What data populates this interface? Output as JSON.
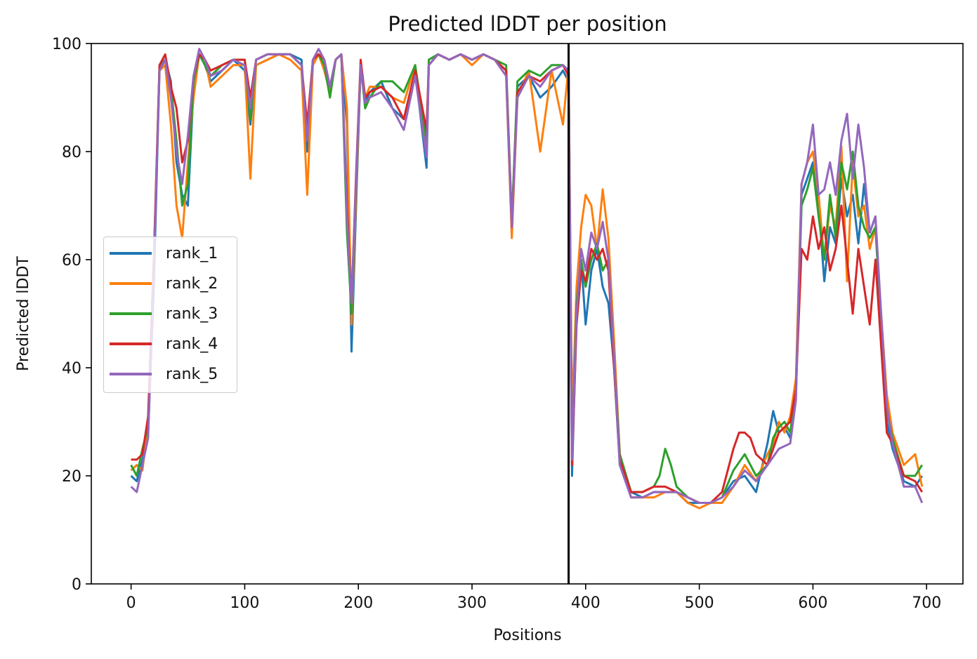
{
  "chart_data": {
    "type": "line",
    "title": "Predicted lDDT per position",
    "xlabel": "Positions",
    "ylabel": "Predicted lDDT",
    "xlim": [
      -35,
      732
    ],
    "ylim": [
      0,
      100
    ],
    "x_ticks": [
      "0",
      "100",
      "200",
      "300",
      "400",
      "500",
      "600",
      "700"
    ],
    "y_ticks": [
      "0",
      "20",
      "40",
      "60",
      "80",
      "100"
    ],
    "vertical_line_x": 385,
    "legend_position": "center-left",
    "grid": false,
    "series": [
      {
        "name": "rank_1",
        "color": "#1f77b4",
        "x": [
          0,
          5,
          10,
          15,
          20,
          25,
          30,
          35,
          40,
          45,
          50,
          55,
          60,
          65,
          70,
          80,
          90,
          100,
          105,
          110,
          120,
          130,
          140,
          150,
          155,
          160,
          165,
          170,
          175,
          180,
          185,
          190,
          194,
          198,
          202,
          206,
          210,
          220,
          230,
          240,
          250,
          260,
          262,
          270,
          280,
          290,
          300,
          310,
          320,
          330,
          335,
          340,
          350,
          360,
          370,
          380,
          385,
          388,
          392,
          396,
          400,
          405,
          410,
          415,
          420,
          425,
          430,
          440,
          450,
          460,
          470,
          480,
          490,
          500,
          510,
          520,
          530,
          540,
          550,
          560,
          565,
          570,
          575,
          580,
          585,
          590,
          595,
          600,
          605,
          610,
          615,
          620,
          625,
          630,
          635,
          640,
          645,
          650,
          655,
          660,
          665,
          670,
          680,
          690,
          696
        ],
        "y": [
          20,
          19,
          23,
          28,
          55,
          95,
          97,
          93,
          78,
          72,
          70,
          92,
          98,
          96,
          93,
          95,
          97,
          95,
          85,
          96,
          97,
          98,
          98,
          97,
          80,
          97,
          98,
          96,
          92,
          97,
          98,
          85,
          43,
          70,
          96,
          89,
          91,
          93,
          88,
          86,
          95,
          77,
          96,
          98,
          97,
          98,
          97,
          98,
          97,
          95,
          67,
          92,
          94,
          90,
          92,
          95,
          93,
          20,
          50,
          60,
          48,
          58,
          62,
          55,
          52,
          40,
          22,
          17,
          16,
          17,
          17,
          17,
          15,
          15,
          15,
          16,
          19,
          20,
          17,
          26,
          32,
          28,
          29,
          27,
          35,
          72,
          75,
          78,
          70,
          56,
          66,
          63,
          75,
          68,
          72,
          63,
          74,
          65,
          68,
          45,
          30,
          25,
          19,
          18,
          20
        ]
      },
      {
        "name": "rank_2",
        "color": "#ff7f0e",
        "x": [
          0,
          5,
          10,
          15,
          20,
          25,
          30,
          35,
          40,
          45,
          50,
          55,
          60,
          65,
          70,
          80,
          90,
          100,
          105,
          110,
          120,
          130,
          140,
          150,
          155,
          160,
          165,
          170,
          175,
          180,
          185,
          190,
          194,
          198,
          202,
          206,
          210,
          220,
          230,
          240,
          250,
          260,
          262,
          270,
          280,
          290,
          300,
          310,
          320,
          330,
          335,
          340,
          350,
          360,
          370,
          380,
          385,
          388,
          392,
          396,
          400,
          405,
          410,
          415,
          420,
          425,
          430,
          440,
          450,
          460,
          470,
          480,
          490,
          500,
          510,
          520,
          530,
          540,
          550,
          560,
          565,
          570,
          575,
          580,
          585,
          590,
          595,
          600,
          605,
          610,
          615,
          620,
          625,
          630,
          635,
          640,
          645,
          650,
          655,
          660,
          665,
          670,
          680,
          690,
          696
        ],
        "y": [
          21,
          22,
          21,
          30,
          60,
          95,
          96,
          85,
          70,
          64,
          78,
          90,
          98,
          97,
          92,
          94,
          96,
          96,
          75,
          96,
          97,
          98,
          97,
          95,
          72,
          96,
          98,
          95,
          91,
          97,
          98,
          88,
          48,
          72,
          96,
          90,
          92,
          92,
          90,
          89,
          96,
          80,
          96,
          98,
          97,
          98,
          96,
          98,
          97,
          94,
          64,
          90,
          95,
          80,
          95,
          85,
          96,
          30,
          55,
          66,
          72,
          70,
          62,
          73,
          64,
          45,
          24,
          16,
          16,
          16,
          17,
          17,
          15,
          14,
          15,
          15,
          18,
          22,
          19,
          24,
          26,
          30,
          28,
          31,
          38,
          74,
          78,
          80,
          72,
          60,
          70,
          66,
          81,
          56,
          78,
          68,
          70,
          62,
          66,
          50,
          35,
          28,
          22,
          24,
          18
        ]
      },
      {
        "name": "rank_3",
        "color": "#2ca02c",
        "x": [
          0,
          5,
          10,
          15,
          20,
          25,
          30,
          35,
          40,
          45,
          50,
          55,
          60,
          65,
          70,
          80,
          90,
          100,
          105,
          110,
          120,
          130,
          140,
          150,
          155,
          160,
          165,
          170,
          175,
          180,
          185,
          190,
          194,
          198,
          202,
          206,
          210,
          220,
          230,
          240,
          250,
          260,
          262,
          270,
          280,
          290,
          300,
          310,
          320,
          330,
          335,
          340,
          350,
          360,
          370,
          380,
          385,
          388,
          392,
          396,
          400,
          405,
          410,
          415,
          420,
          425,
          430,
          440,
          450,
          460,
          465,
          470,
          475,
          480,
          490,
          500,
          510,
          520,
          530,
          540,
          550,
          560,
          565,
          570,
          575,
          580,
          585,
          590,
          595,
          600,
          605,
          610,
          615,
          620,
          625,
          630,
          635,
          640,
          645,
          650,
          655,
          660,
          665,
          670,
          680,
          690,
          696
        ],
        "y": [
          22,
          20,
          25,
          29,
          58,
          96,
          97,
          92,
          82,
          70,
          74,
          93,
          98,
          96,
          94,
          96,
          97,
          97,
          86,
          97,
          98,
          98,
          98,
          96,
          84,
          97,
          98,
          96,
          90,
          97,
          98,
          65,
          50,
          74,
          96,
          88,
          90,
          93,
          93,
          91,
          96,
          82,
          97,
          98,
          97,
          98,
          97,
          98,
          97,
          96,
          67,
          93,
          95,
          94,
          96,
          96,
          95,
          24,
          52,
          60,
          55,
          60,
          63,
          58,
          60,
          42,
          24,
          17,
          17,
          18,
          20,
          25,
          22,
          18,
          16,
          15,
          15,
          16,
          21,
          24,
          20,
          22,
          27,
          29,
          30,
          28,
          36,
          70,
          73,
          77,
          68,
          60,
          72,
          64,
          78,
          73,
          80,
          70,
          66,
          64,
          66,
          48,
          32,
          27,
          20,
          20,
          22
        ]
      },
      {
        "name": "rank_4",
        "color": "#d62728",
        "x": [
          0,
          5,
          10,
          15,
          20,
          25,
          30,
          35,
          40,
          45,
          50,
          55,
          60,
          65,
          70,
          80,
          90,
          100,
          105,
          110,
          120,
          130,
          140,
          150,
          155,
          160,
          165,
          170,
          175,
          180,
          185,
          190,
          194,
          198,
          202,
          206,
          210,
          220,
          230,
          240,
          250,
          260,
          262,
          270,
          280,
          290,
          300,
          310,
          320,
          330,
          335,
          340,
          350,
          360,
          370,
          380,
          385,
          388,
          392,
          396,
          400,
          405,
          410,
          415,
          420,
          425,
          430,
          440,
          450,
          460,
          470,
          480,
          490,
          500,
          510,
          520,
          530,
          535,
          540,
          545,
          550,
          560,
          570,
          580,
          585,
          590,
          595,
          600,
          605,
          610,
          615,
          620,
          625,
          630,
          635,
          640,
          645,
          650,
          655,
          660,
          665,
          670,
          680,
          690,
          696
        ],
        "y": [
          23,
          23,
          24,
          31,
          60,
          96,
          98,
          92,
          88,
          78,
          82,
          94,
          98,
          97,
          95,
          96,
          97,
          97,
          90,
          97,
          98,
          98,
          98,
          96,
          85,
          97,
          98,
          97,
          92,
          97,
          98,
          70,
          52,
          76,
          97,
          90,
          91,
          92,
          90,
          86,
          95,
          84,
          96,
          98,
          97,
          98,
          97,
          98,
          97,
          95,
          66,
          91,
          94,
          93,
          95,
          96,
          94,
          22,
          48,
          58,
          56,
          62,
          60,
          62,
          58,
          40,
          23,
          17,
          17,
          18,
          18,
          17,
          16,
          15,
          15,
          17,
          25,
          28,
          28,
          27,
          24,
          22,
          28,
          30,
          36,
          62,
          60,
          68,
          62,
          66,
          58,
          62,
          70,
          60,
          50,
          62,
          55,
          48,
          60,
          44,
          28,
          26,
          20,
          19,
          17
        ]
      },
      {
        "name": "rank_5",
        "color": "#9467bd",
        "x": [
          0,
          5,
          10,
          15,
          20,
          25,
          30,
          35,
          40,
          45,
          50,
          55,
          60,
          65,
          70,
          80,
          90,
          100,
          105,
          110,
          120,
          130,
          140,
          150,
          155,
          160,
          165,
          170,
          175,
          180,
          185,
          190,
          194,
          198,
          202,
          206,
          210,
          220,
          230,
          240,
          250,
          260,
          262,
          270,
          280,
          290,
          300,
          310,
          320,
          330,
          335,
          340,
          350,
          360,
          370,
          380,
          385,
          388,
          392,
          396,
          400,
          405,
          410,
          415,
          420,
          425,
          430,
          440,
          450,
          460,
          470,
          480,
          490,
          500,
          510,
          520,
          530,
          540,
          550,
          560,
          570,
          580,
          585,
          590,
          595,
          600,
          605,
          610,
          615,
          620,
          625,
          630,
          635,
          640,
          645,
          650,
          655,
          660,
          665,
          670,
          680,
          690,
          696
        ],
        "y": [
          18,
          17,
          22,
          27,
          58,
          95,
          97,
          90,
          80,
          74,
          83,
          94,
          99,
          97,
          94,
          95,
          97,
          96,
          88,
          97,
          98,
          98,
          98,
          96,
          82,
          97,
          99,
          97,
          92,
          97,
          98,
          68,
          52,
          75,
          96,
          89,
          90,
          91,
          88,
          84,
          94,
          79,
          96,
          98,
          97,
          98,
          97,
          98,
          97,
          94,
          66,
          90,
          94,
          92,
          95,
          96,
          95,
          23,
          50,
          62,
          58,
          65,
          62,
          67,
          60,
          42,
          22,
          16,
          16,
          17,
          17,
          17,
          16,
          15,
          15,
          16,
          18,
          21,
          19,
          22,
          25,
          26,
          34,
          74,
          78,
          85,
          72,
          73,
          78,
          72,
          82,
          87,
          75,
          85,
          77,
          65,
          68,
          50,
          33,
          26,
          18,
          18,
          15
        ]
      }
    ]
  }
}
